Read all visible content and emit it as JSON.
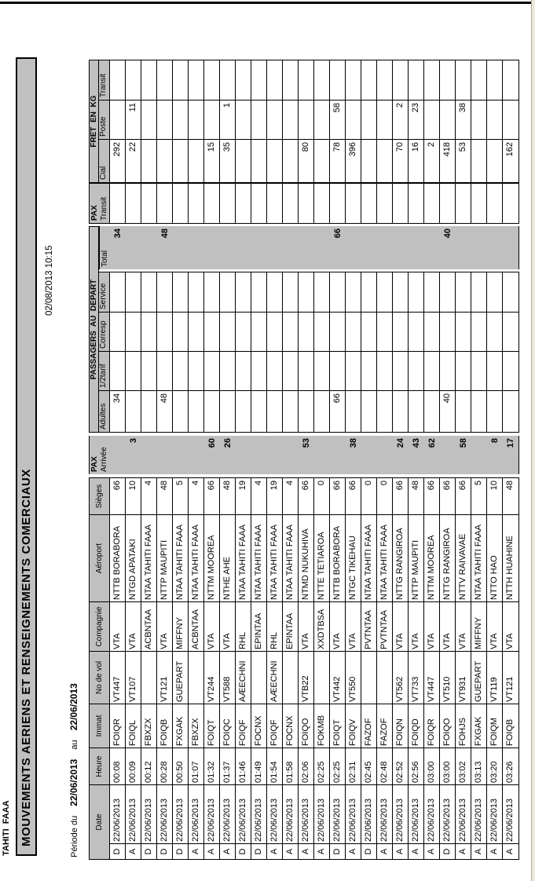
{
  "colors": {
    "header_gray": "#c0c0c0",
    "window_edge": "#ece9d8",
    "line": "#000000"
  },
  "report": {
    "station": "TAHITI  FAAA",
    "title": "MOUVEMENTS AERIENS ET RENSEIGNEMENTS COMERCIAUX",
    "printed": "02/08/2013 10:15",
    "period_label": "Période du",
    "period_from": "22/06/2013",
    "period_sep": "au",
    "period_to": "22/06/2013"
  },
  "table": {
    "headers": {
      "date": "Date",
      "heure": "Heure",
      "immat": "Immat",
      "vol": "No de vol",
      "compagnie": "Compagnie",
      "aeroport": "Aéroport",
      "sieges": "Sièges",
      "pax": "PAX",
      "arrivee": "Arrivée",
      "passagers": "PASSAGERS  AU  DEPART",
      "adultes": "Adultes",
      "demi_tarif": "1/2tarif",
      "corresp": "Corresp",
      "service": "Service",
      "total": "Total",
      "transit": "Transit",
      "fret": "FRET  EN  KG",
      "cial": "Cial",
      "poste": "Poste"
    },
    "rows": [
      {
        "da": "D",
        "date": "22/06/2013",
        "heure": "00:08",
        "immat": "FOIQR",
        "vol": "VT447",
        "compagnie": "VTA",
        "aeroport": "NTTB BORABORA",
        "sieges": "66",
        "adultes": "34",
        "total": "34",
        "fret_cial": "292"
      },
      {
        "da": "A",
        "date": "22/06/2013",
        "heure": "00:09",
        "immat": "FOIQL",
        "vol": "VT107",
        "compagnie": "VTA",
        "aeroport": "NTGD APATAKI",
        "sieges": "10",
        "arrivee": "3",
        "fret_cial": "22",
        "fret_poste": "11"
      },
      {
        "da": "D",
        "date": "22/06/2013",
        "heure": "00:12",
        "immat": "FBXZX",
        "vol": "",
        "compagnie": "ACBNTAA",
        "aeroport": "NTAA TAHITI FAAA",
        "sieges": "4"
      },
      {
        "da": "D",
        "date": "22/06/2013",
        "heure": "00:28",
        "immat": "FOIQB",
        "vol": "VT121",
        "compagnie": "VTA",
        "aeroport": "NTTP MAUPITI",
        "sieges": "48",
        "adultes": "48",
        "total": "48"
      },
      {
        "da": "D",
        "date": "22/06/2013",
        "heure": "00:50",
        "immat": "FXGAK",
        "vol": "GUEPART",
        "compagnie": "MIFFNY",
        "aeroport": "NTAA TAHITI FAAA",
        "sieges": "5"
      },
      {
        "da": "A",
        "date": "22/06/2013",
        "heure": "01:07",
        "immat": "FBXZX",
        "vol": "",
        "compagnie": "ACBNTAA",
        "aeroport": "NTAA TAHITI FAAA",
        "sieges": "4"
      },
      {
        "da": "A",
        "date": "22/06/2013",
        "heure": "01:32",
        "immat": "FOIQT",
        "vol": "VT244",
        "compagnie": "VTA",
        "aeroport": "NTTM MOOREA",
        "sieges": "66",
        "arrivee": "60",
        "fret_cial": "15"
      },
      {
        "da": "A",
        "date": "22/06/2013",
        "heure": "01:37",
        "immat": "FOIQC",
        "vol": "VT588",
        "compagnie": "VTA",
        "aeroport": "NTHE AHE",
        "sieges": "48",
        "arrivee": "26",
        "fret_cial": "35",
        "fret_poste": "1"
      },
      {
        "da": "D",
        "date": "22/06/2013",
        "heure": "01:46",
        "immat": "FOIQF",
        "vol": "AÆECHNI",
        "compagnie": "RHL",
        "aeroport": "NTAA TAHITI FAAA",
        "sieges": "19"
      },
      {
        "da": "D",
        "date": "22/06/2013",
        "heure": "01:49",
        "immat": "FOCNX",
        "vol": "",
        "compagnie": "EPINTAA",
        "aeroport": "NTAA TAHITI FAAA",
        "sieges": "4"
      },
      {
        "da": "A",
        "date": "22/06/2013",
        "heure": "01:54",
        "immat": "FOIQF",
        "vol": "AÆECHNI",
        "compagnie": "RHL",
        "aeroport": "NTAA TAHITI FAAA",
        "sieges": "19"
      },
      {
        "da": "A",
        "date": "22/06/2013",
        "heure": "01:58",
        "immat": "FOCNX",
        "vol": "",
        "compagnie": "EPINTAA",
        "aeroport": "NTAA TAHITI FAAA",
        "sieges": "4"
      },
      {
        "da": "A",
        "date": "22/06/2013",
        "heure": "02:06",
        "immat": "FOIQO",
        "vol": "VTB22",
        "compagnie": "VTA",
        "aeroport": "NTMD NUKUHIVA",
        "sieges": "66",
        "arrivee": "53",
        "fret_cial": "80"
      },
      {
        "da": "A",
        "date": "22/06/2013",
        "heure": "02:25",
        "immat": "FOKMB",
        "vol": "",
        "compagnie": "XXDTBSA",
        "aeroport": "NTTE TETIAROA",
        "sieges": "0"
      },
      {
        "da": "D",
        "date": "22/06/2013",
        "heure": "02:25",
        "immat": "FOIQT",
        "vol": "VT442",
        "compagnie": "VTA",
        "aeroport": "NTTB BORABORA",
        "sieges": "66",
        "adultes": "66",
        "total": "66",
        "fret_cial": "78",
        "fret_poste": "58"
      },
      {
        "da": "A",
        "date": "22/06/2013",
        "heure": "02:31",
        "immat": "FOIQV",
        "vol": "VT550",
        "compagnie": "VTA",
        "aeroport": "NTGC TIKEHAU",
        "sieges": "66",
        "arrivee": "38",
        "fret_cial": "396"
      },
      {
        "da": "D",
        "date": "22/06/2013",
        "heure": "02:45",
        "immat": "FAZOF",
        "vol": "",
        "compagnie": "PVTNTAA",
        "aeroport": "NTAA TAHITI FAAA",
        "sieges": "0"
      },
      {
        "da": "A",
        "date": "22/06/2013",
        "heure": "02:48",
        "immat": "FAZOF",
        "vol": "",
        "compagnie": "PVTNTAA",
        "aeroport": "NTAA TAHITI FAAA",
        "sieges": "0"
      },
      {
        "da": "A",
        "date": "22/06/2013",
        "heure": "02:52",
        "immat": "FOIQN",
        "vol": "VT562",
        "compagnie": "VTA",
        "aeroport": "NTTG RANGIROA",
        "sieges": "66",
        "arrivee": "24",
        "fret_cial": "70",
        "fret_poste": "2"
      },
      {
        "da": "A",
        "date": "22/06/2013",
        "heure": "02:56",
        "immat": "FOIQD",
        "vol": "VT733",
        "compagnie": "VTA",
        "aeroport": "NTTP MAUPITI",
        "sieges": "48",
        "arrivee": "43",
        "fret_cial": "16",
        "fret_poste": "23"
      },
      {
        "da": "A",
        "date": "22/06/2013",
        "heure": "03:00",
        "immat": "FOIQR",
        "vol": "VT447",
        "compagnie": "VTA",
        "aeroport": "NTTM MOOREA",
        "sieges": "66",
        "arrivee": "62",
        "fret_cial": "2"
      },
      {
        "da": "D",
        "date": "22/06/2013",
        "heure": "03:00",
        "immat": "FOIQO",
        "vol": "VT510",
        "compagnie": "VTA",
        "aeroport": "NTTG RANGIROA",
        "sieges": "66",
        "adultes": "40",
        "total": "40",
        "fret_cial": "418"
      },
      {
        "da": "A",
        "date": "22/06/2013",
        "heure": "03:02",
        "immat": "FOHJS",
        "vol": "VT931",
        "compagnie": "VTA",
        "aeroport": "NTTV RAIVAVAE",
        "sieges": "66",
        "arrivee": "58",
        "fret_cial": "53",
        "fret_poste": "38"
      },
      {
        "da": "A",
        "date": "22/06/2013",
        "heure": "03:13",
        "immat": "FXGAK",
        "vol": "GUEPART",
        "compagnie": "MIFFNY",
        "aeroport": "NTAA TAHITI FAAA",
        "sieges": "5"
      },
      {
        "da": "A",
        "date": "22/06/2013",
        "heure": "03:20",
        "immat": "FOIQM",
        "vol": "VT119",
        "compagnie": "VTA",
        "aeroport": "NTTO HAO",
        "sieges": "10",
        "arrivee": "8"
      },
      {
        "da": "A",
        "date": "22/06/2013",
        "heure": "03:26",
        "immat": "FOIQB",
        "vol": "VT121",
        "compagnie": "VTA",
        "aeroport": "NTTH HUAHINE",
        "sieges": "48",
        "arrivee": "17",
        "fret_cial": "162"
      }
    ]
  }
}
